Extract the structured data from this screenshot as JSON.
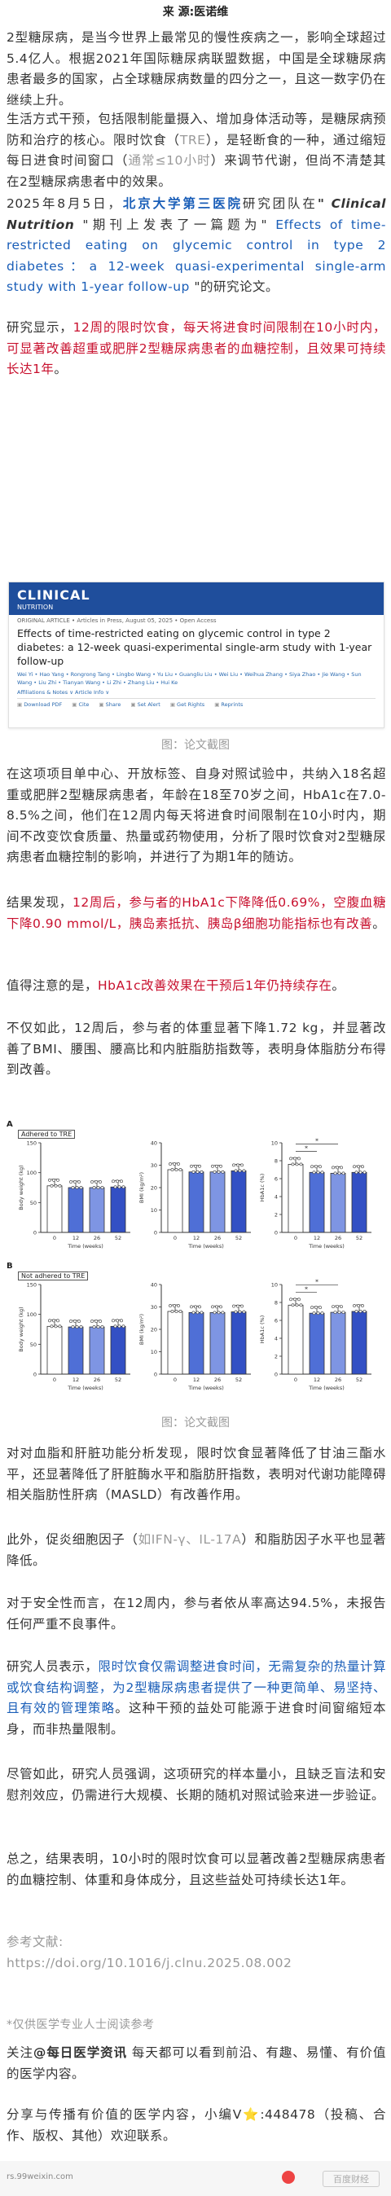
{
  "header": {
    "source": "来 源:医诺维"
  },
  "paragraphs": {
    "p1": "2型糖尿病，是当今世界上最常见的慢性疾病之一，影响全球超过5.4亿人。根据2021年国际糖尿病联盟数据，中国是全球糖尿病患者最多的国家，占全球糖尿病数量的四分之一，且这一数字仍在继续上升。",
    "p2a": "生活方式干预，包括限制能量摄入、增加身体活动等，是糖尿病预防和治疗的核心。限时饮食（",
    "p2b": "TRE",
    "p2c": "），是轻断食的一种，通过缩短每日进食时间窗口（",
    "p2d": "通常≤10小时",
    "p2e": "）来调节代谢，但尚不清楚其在2型糖尿病患者中的效果。",
    "p3a": "2025年8月5日，",
    "p3b": "北京大学第三医院",
    "p3c": "研究团队在",
    "p3d": "\" Clinical Nutrition",
    "p3e": " \"期刊上发表了一篇题为\" ",
    "p3f": "Effects of time-restricted eating on glycemic control in type 2 diabetes：a 12-week quasi-experimental single-arm study with 1-year follow-up",
    "p3g": " \"的研究论文。",
    "p4a": "研究显示，",
    "p4b": "12周的限时饮食，每天将进食时间限制在10小时内，可显著改善超重或肥胖2型糖尿病患者的血糖控制，且效果可持续长达1年",
    "p4c": "。",
    "p5": "在这项项目单中心、开放标签、自身对照试验中，共纳入18名超重或肥胖2型糖尿病患者，年龄在18至70岁之间，HbA1c在7.0-8.5%之间，他们在12周内每天将进食时间限制在10小时内，期间不改变饮食质量、热量或药物使用，分析了限时饮食对2型糖尿病患者血糖控制的影响，并进行了为期1年的随访。",
    "p6a": "结果发现，",
    "p6b": "12周后，参与者的HbA1c下降降低0.69%，空腹血糖下降0.90 mmol/L，胰岛素抵抗、胰岛β细胞功能指标也有改善",
    "p6c": "。",
    "p7a": "值得注意的是，",
    "p7b": "HbA1c改善效果在干预后1年仍持续存在",
    "p7c": "。",
    "p8": "不仅如此，12周后，参与者的体重显著下降1.72 kg，并显著改善了BMI、腰围、腰高比和内脏脂肪指数等，表明身体脂肪分布得到改善。",
    "p9": "对对血脂和肝脏功能分析发现，限时饮食显著降低了甘油三酯水平，还显著降低了肝脏酶水平和脂肪肝指数，表明对代谢功能障碍相关脂肪性肝病（MASLD）有改善作用。",
    "p10a": "此外，促炎细胞因子（",
    "p10b": "如IFN-γ、IL-17A",
    "p10c": "）和脂肪因子水平也显著降低。",
    "p11": "对于安全性而言，在12周内，参与者依从率高达94.5%，未报告任何严重不良事件。",
    "p12a": "研究人员表示，",
    "p12b": "限时饮食仅需调整进食时间，无需复杂的热量计算或饮食结构调整，为2型糖尿病患者提供了一种更简单、易坚持、且有效的管理策略",
    "p12c": "。这种干预的益处可能源于进食时间窗缩短本身，而非热量限制。",
    "p13": "尽管如此，研究人员强调，这项研究的样本量小，且缺乏盲法和安慰剂效应，仍需进行大规模、长期的随机对照试验来进一步验证。",
    "p14": "总之，结果表明，10小时的限时饮食可以显著改善2型糖尿病患者的血糖控制、体重和身体成分，且这些益处可持续长达1年。",
    "ref_title": "参考文献:",
    "ref_url": "https://doi.org/10.1016/j.clnu.2025.08.002",
    "disclaimer": "*仅供医学专业人士阅读参考",
    "follow_a": "关注",
    "follow_b": "@每日医学资讯",
    "follow_c": " 每天都可以看到前沿、有趣、易懂、有价值的医学内容。",
    "share": "分享与传播有价值的医学内容，小编V⭐:448478（投稿、合作、版权、其他）欢迎联系。"
  },
  "captions": {
    "c1": "图：论文截图",
    "c2": "图：论文截图"
  },
  "article_card": {
    "journal": "CLINICAL",
    "journal_sub": "NUTRITION",
    "meta": "ORIGINAL ARTICLE • Articles in Press, August 05, 2025 • Open Access",
    "title": "Effects of time-restricted eating on glycemic control in type 2 diabetes: a 12-week quasi-experimental single-arm study with 1-year follow-up",
    "authors": "Wei Yi • Hao Yang • Rongrong Tang • Lingbo Wang • Yu Liu • Guangliu Liu • Wei Liu • Weihua Zhang • Siya Zhao • Jie Wang • Sun Wang • Liu Zhi • Tianyan Wang • Li Zhi • Zhang Liu • Hui Ke",
    "links": "Affiliations & Notes ∨   Article Info ∨",
    "actions": [
      "Download PDF",
      "Cite",
      "Share",
      "Set Alert",
      "Get Rights",
      "Reprints"
    ]
  },
  "figure": {
    "panel_a_label": "A",
    "panel_a_tag": "Adhered to TRE",
    "panel_b_label": "B",
    "panel_b_tag": "Not adhered to TRE",
    "x_title": "Time (weeks)",
    "x_ticks": [
      "0",
      "12",
      "26",
      "52"
    ],
    "y_titles": [
      "Body weight (kg)",
      "BMI (kg/m²)",
      "HbA1c (%)"
    ],
    "y_ticks_weight": [
      "0",
      "50",
      "100",
      "150"
    ],
    "y_ticks_bmi": [
      "0",
      "10",
      "20",
      "30",
      "40"
    ],
    "y_ticks_hba1c": [
      "0",
      "2",
      "4",
      "6",
      "8",
      "10"
    ],
    "significance": "*",
    "colors": {
      "week0": "#ffffff",
      "week12": "#4f6fd6",
      "week26": "#7e95e3",
      "week52": "#3350c4"
    }
  },
  "chart_data": [
    {
      "type": "bar",
      "title": "",
      "panel": "A",
      "panel_tag": "Adhered to TRE",
      "xlabel": "Time (weeks)",
      "ylabel": "Body weight (kg)",
      "categories": [
        "0",
        "12",
        "26",
        "52"
      ],
      "values": [
        78,
        75,
        75,
        76
      ],
      "ylim": [
        0,
        150
      ]
    },
    {
      "type": "bar",
      "panel": "A",
      "xlabel": "Time (weeks)",
      "ylabel": "BMI (kg/m²)",
      "categories": [
        "0",
        "12",
        "26",
        "52"
      ],
      "values": [
        28,
        27,
        27,
        27.5
      ],
      "ylim": [
        0,
        40
      ]
    },
    {
      "type": "bar",
      "panel": "A",
      "xlabel": "Time (weeks)",
      "ylabel": "HbA1c (%)",
      "categories": [
        "0",
        "12",
        "26",
        "52"
      ],
      "values": [
        7.6,
        6.7,
        6.6,
        6.7
      ],
      "ylim": [
        0,
        10
      ]
    },
    {
      "type": "bar",
      "panel": "B",
      "panel_tag": "Not adhered to TRE",
      "xlabel": "Time (weeks)",
      "ylabel": "Body weight (kg)",
      "categories": [
        "0",
        "12",
        "26",
        "52"
      ],
      "values": [
        80,
        79,
        79,
        80
      ],
      "ylim": [
        0,
        150
      ]
    },
    {
      "type": "bar",
      "panel": "B",
      "xlabel": "Time (weeks)",
      "ylabel": "BMI (kg/m²)",
      "categories": [
        "0",
        "12",
        "26",
        "52"
      ],
      "values": [
        28,
        27.5,
        27.5,
        27.8
      ],
      "ylim": [
        0,
        40
      ]
    },
    {
      "type": "bar",
      "panel": "B",
      "xlabel": "Time (weeks)",
      "ylabel": "HbA1c (%)",
      "categories": [
        "0",
        "12",
        "26",
        "52"
      ],
      "values": [
        7.7,
        6.8,
        6.9,
        7.0
      ],
      "ylim": [
        0,
        10
      ]
    }
  ],
  "footer": {
    "site": "rs.99weixin.com",
    "watermark": "百度财经"
  }
}
